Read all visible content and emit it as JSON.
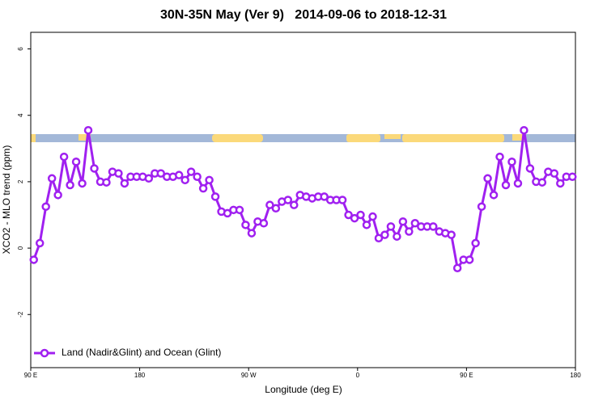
{
  "chart_data": {
    "type": "line",
    "title": "30N-35N May (Ver 9)   2014-09-06 to 2018-12-31",
    "x_label": "Longitude (deg E)",
    "y_label": "XCO2 - MLO trend (ppm)",
    "x": [
      92.5,
      97.5,
      102.5,
      107.5,
      112.5,
      117.5,
      122.5,
      127.5,
      132.5,
      137.5,
      142.5,
      147.5,
      152.5,
      157.5,
      162.5,
      167.5,
      172.5,
      177.5,
      182.5,
      187.5,
      192.5,
      197.5,
      202.5,
      207.5,
      212.5,
      217.5,
      222.5,
      227.5,
      232.5,
      237.5,
      242.5,
      247.5,
      252.5,
      257.5,
      262.5,
      267.5,
      272.5,
      277.5,
      282.5,
      287.5,
      292.5,
      297.5,
      302.5,
      307.5,
      312.5,
      317.5,
      322.5,
      327.5,
      332.5,
      337.5,
      342.5,
      347.5,
      352.5,
      357.5,
      362.5,
      367.5,
      372.5,
      377.5,
      382.5,
      387.5,
      392.5,
      397.5,
      402.5,
      407.5,
      412.5,
      417.5,
      422.5,
      427.5,
      432.5,
      437.5,
      442.5,
      447.5,
      452.5,
      457.5,
      462.5,
      467.5,
      472.5,
      477.5,
      482.5,
      487.5,
      492.5,
      497.5,
      502.5,
      507.5,
      512.5,
      517.5,
      522.5,
      527.5,
      532.5,
      537.5
    ],
    "series": [
      {
        "name": "Land (Nadir&Glint) and Ocean (Glint)",
        "color": "#a020f0",
        "values": [
          -0.35,
          0.15,
          1.25,
          2.1,
          1.6,
          2.75,
          1.9,
          2.6,
          1.95,
          3.55,
          2.4,
          2.0,
          1.98,
          2.3,
          2.25,
          1.95,
          2.15,
          2.15,
          2.15,
          2.1,
          2.25,
          2.25,
          2.15,
          2.15,
          2.2,
          2.05,
          2.3,
          2.15,
          1.8,
          2.05,
          1.55,
          1.1,
          1.05,
          1.15,
          1.15,
          0.7,
          0.45,
          0.8,
          0.75,
          1.3,
          1.2,
          1.4,
          1.45,
          1.3,
          1.6,
          1.55,
          1.5,
          1.55,
          1.55,
          1.45,
          1.45,
          1.45,
          1.0,
          0.9,
          1.0,
          0.7,
          0.95,
          0.3,
          0.4,
          0.65,
          0.35,
          0.8,
          0.5,
          0.75,
          0.65,
          0.65,
          0.65,
          0.5,
          0.45,
          0.4,
          -0.6,
          -0.35,
          -0.35,
          0.15,
          1.25,
          2.1,
          1.6,
          2.75,
          1.9,
          2.6,
          1.95,
          3.55,
          2.4,
          2.0,
          1.98,
          2.3,
          2.25,
          1.95,
          2.15,
          2.15
        ]
      }
    ],
    "xlim": [
      90,
      540
    ],
    "xticks": [
      {
        "value": 90,
        "label": "90 E"
      },
      180,
      {
        "value": 270,
        "label": "90 W"
      },
      {
        "value": 360,
        "label": "0"
      },
      {
        "value": 450,
        "label": "90 E"
      },
      {
        "value": 540,
        "label": "180"
      }
    ],
    "ylim": [
      -3.6,
      6.5
    ],
    "yticks": [
      -2,
      0,
      2,
      4,
      6
    ],
    "legend": "bottom-left"
  }
}
